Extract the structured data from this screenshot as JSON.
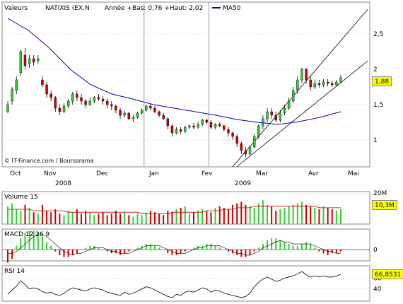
{
  "header": {
    "valeurs_label": "Valeurs",
    "symbol": "NATIXIS (EX.N",
    "range_text": "Année +Bas: 0,76 +Haut: 2,02",
    "ma_label": "MA50",
    "ma_color": "#0000cc"
  },
  "copyright": "© IT-Finance.com / Boursorama",
  "colors": {
    "up": "#33cc33",
    "down": "#cc0000",
    "ma": "#0000cc",
    "highlight": "#ffff00",
    "grid": "#d0d0d0"
  },
  "chart_data": [
    {
      "type": "line",
      "panel": "price",
      "note_type": "candlestick",
      "title": "",
      "months": [
        "Oct",
        "Nov",
        "Dec",
        "Jan",
        "Fev",
        "Mar",
        "Avr",
        "Mai"
      ],
      "years": [
        "2008",
        "2009"
      ],
      "yticks": [
        "2,5",
        "2",
        "1,5",
        "1"
      ],
      "ytick_values": [
        2.5,
        2.0,
        1.5,
        1.0
      ],
      "ylim": [
        0.62,
        2.9
      ],
      "last_value": "1,88",
      "series": [
        {
          "name": "MA50",
          "x": [
            0,
            10,
            20,
            30,
            40,
            50,
            60,
            70,
            80,
            90,
            100,
            110,
            120,
            130,
            140,
            150,
            160
          ],
          "values": [
            2.72,
            2.55,
            2.3,
            2.0,
            1.78,
            1.65,
            1.58,
            1.5,
            1.45,
            1.4,
            1.35,
            1.29,
            1.25,
            1.22,
            1.26,
            1.32,
            1.4
          ]
        }
      ],
      "trendlines": [
        {
          "x": [
            108,
            173
          ],
          "y": [
            0.62,
            2.85
          ]
        },
        {
          "x": [
            110,
            173
          ],
          "y": [
            0.62,
            2.12
          ]
        }
      ],
      "candles": [
        [
          0,
          1.4,
          1.5,
          1.38,
          1.55
        ],
        [
          1,
          1.55,
          1.72,
          1.5,
          1.75
        ],
        [
          2,
          1.7,
          1.85,
          1.65,
          1.9
        ],
        [
          3,
          1.95,
          2.25,
          1.9,
          2.28
        ],
        [
          4,
          2.2,
          2.05,
          2.0,
          2.3
        ],
        [
          5,
          2.08,
          2.15,
          2.02,
          2.2
        ],
        [
          6,
          2.15,
          2.1,
          2.05,
          2.2
        ],
        [
          7,
          2.12,
          2.15,
          2.08,
          2.2
        ],
        [
          8,
          1.85,
          1.78,
          1.75,
          1.9
        ],
        [
          9,
          1.78,
          1.65,
          1.6,
          1.82
        ],
        [
          10,
          1.65,
          1.6,
          1.55,
          1.7
        ],
        [
          11,
          1.6,
          1.45,
          1.4,
          1.62
        ],
        [
          12,
          1.45,
          1.4,
          1.35,
          1.5
        ],
        [
          13,
          1.4,
          1.48,
          1.38,
          1.52
        ],
        [
          14,
          1.48,
          1.55,
          1.45,
          1.58
        ],
        [
          15,
          1.55,
          1.65,
          1.5,
          1.68
        ],
        [
          16,
          1.65,
          1.6,
          1.55,
          1.7
        ],
        [
          17,
          1.6,
          1.55,
          1.5,
          1.65
        ],
        [
          18,
          1.55,
          1.5,
          1.45,
          1.58
        ],
        [
          19,
          1.5,
          1.55,
          1.48,
          1.6
        ],
        [
          20,
          1.55,
          1.6,
          1.52,
          1.62
        ],
        [
          21,
          1.6,
          1.58,
          1.55,
          1.65
        ],
        [
          22,
          1.58,
          1.55,
          1.5,
          1.62
        ],
        [
          23,
          1.55,
          1.5,
          1.45,
          1.58
        ],
        [
          24,
          1.5,
          1.48,
          1.42,
          1.55
        ],
        [
          25,
          1.48,
          1.42,
          1.38,
          1.5
        ],
        [
          26,
          1.42,
          1.35,
          1.3,
          1.45
        ],
        [
          27,
          1.35,
          1.38,
          1.32,
          1.42
        ],
        [
          28,
          1.38,
          1.3,
          1.28,
          1.4
        ],
        [
          29,
          1.3,
          1.32,
          1.25,
          1.36
        ],
        [
          30,
          1.32,
          1.38,
          1.3,
          1.4
        ],
        [
          31,
          1.38,
          1.42,
          1.35,
          1.45
        ],
        [
          32,
          1.42,
          1.48,
          1.4,
          1.5
        ],
        [
          33,
          1.48,
          1.45,
          1.42,
          1.52
        ],
        [
          34,
          1.45,
          1.4,
          1.38,
          1.48
        ],
        [
          35,
          1.4,
          1.35,
          1.32,
          1.42
        ],
        [
          36,
          1.35,
          1.3,
          1.28,
          1.38
        ],
        [
          37,
          1.3,
          1.2,
          1.15,
          1.32
        ],
        [
          38,
          1.2,
          1.1,
          1.05,
          1.22
        ],
        [
          39,
          1.1,
          1.15,
          1.08,
          1.18
        ],
        [
          40,
          1.15,
          1.12,
          1.08,
          1.18
        ],
        [
          41,
          1.12,
          1.18,
          1.1,
          1.2
        ],
        [
          42,
          1.18,
          1.2,
          1.15,
          1.22
        ],
        [
          43,
          1.2,
          1.18,
          1.15,
          1.24
        ],
        [
          44,
          1.18,
          1.22,
          1.16,
          1.26
        ],
        [
          45,
          1.22,
          1.28,
          1.2,
          1.3
        ],
        [
          46,
          1.28,
          1.25,
          1.22,
          1.3
        ],
        [
          47,
          1.25,
          1.18,
          1.15,
          1.28
        ],
        [
          48,
          1.18,
          1.22,
          1.15,
          1.24
        ],
        [
          49,
          1.22,
          1.2,
          1.18,
          1.25
        ],
        [
          50,
          1.2,
          1.15,
          1.12,
          1.22
        ],
        [
          51,
          1.15,
          1.1,
          1.05,
          1.18
        ],
        [
          52,
          1.1,
          1.05,
          1.0,
          1.12
        ],
        [
          53,
          1.05,
          0.95,
          0.9,
          1.08
        ],
        [
          54,
          0.95,
          0.85,
          0.8,
          0.98
        ],
        [
          55,
          0.85,
          0.8,
          0.76,
          0.9
        ],
        [
          56,
          0.8,
          0.9,
          0.78,
          0.92
        ],
        [
          57,
          0.9,
          1.05,
          0.88,
          1.08
        ],
        [
          58,
          1.05,
          1.2,
          1.02,
          1.22
        ],
        [
          59,
          1.2,
          1.3,
          1.15,
          1.35
        ],
        [
          60,
          1.3,
          1.4,
          1.25,
          1.45
        ],
        [
          61,
          1.4,
          1.35,
          1.3,
          1.45
        ],
        [
          62,
          1.35,
          1.28,
          1.25,
          1.4
        ],
        [
          63,
          1.28,
          1.38,
          1.25,
          1.42
        ],
        [
          64,
          1.38,
          1.45,
          1.35,
          1.5
        ],
        [
          65,
          1.45,
          1.55,
          1.42,
          1.6
        ],
        [
          66,
          1.55,
          1.7,
          1.52,
          1.75
        ],
        [
          67,
          1.7,
          1.85,
          1.65,
          1.9
        ],
        [
          68,
          1.85,
          2.0,
          1.8,
          2.02
        ],
        [
          69,
          2.0,
          1.85,
          1.8,
          2.02
        ],
        [
          70,
          1.85,
          1.75,
          1.7,
          1.9
        ],
        [
          71,
          1.75,
          1.8,
          1.72,
          1.85
        ],
        [
          72,
          1.8,
          1.78,
          1.74,
          1.85
        ],
        [
          73,
          1.78,
          1.82,
          1.75,
          1.86
        ],
        [
          74,
          1.82,
          1.8,
          1.76,
          1.86
        ],
        [
          75,
          1.8,
          1.78,
          1.75,
          1.84
        ],
        [
          76,
          1.78,
          1.82,
          1.76,
          1.85
        ],
        [
          77,
          1.82,
          1.88,
          1.8,
          1.92
        ]
      ]
    },
    {
      "type": "bar",
      "panel": "volume",
      "title": "Volume 15",
      "yticks": [
        "20M"
      ],
      "ytick_values": [
        20
      ],
      "ylim": [
        0,
        20
      ],
      "last_value": "10,3M",
      "values": [
        12,
        14,
        10,
        9,
        13,
        11,
        8,
        7,
        13,
        9,
        8,
        10,
        7,
        6,
        9,
        8,
        10,
        7,
        9,
        8,
        6,
        7,
        8,
        6,
        7,
        9,
        7,
        8,
        6,
        5,
        7,
        6,
        8,
        9,
        8,
        7,
        6,
        9,
        8,
        10,
        11,
        12,
        7,
        8,
        9,
        10,
        9,
        8,
        11,
        12,
        11,
        10,
        13,
        14,
        15,
        13,
        12,
        11,
        14,
        16,
        13,
        12,
        9,
        10,
        11,
        12,
        13,
        14,
        15,
        13,
        12,
        11,
        10,
        12,
        11,
        10,
        9,
        10.3
      ],
      "ma": [
        10,
        10,
        10,
        10,
        10,
        10,
        9,
        9,
        9,
        9,
        9,
        9,
        9,
        9,
        8,
        8,
        8,
        8,
        8,
        8,
        8,
        8,
        8,
        8,
        8,
        8,
        8,
        8,
        8,
        8,
        8,
        7,
        7,
        7,
        7,
        7,
        7,
        7,
        8,
        8,
        8,
        8,
        8,
        8,
        8,
        8,
        9,
        9,
        9,
        9,
        10,
        10,
        10,
        11,
        11,
        11,
        11,
        12,
        12,
        12,
        12,
        12,
        12,
        12,
        12,
        12,
        12,
        12,
        12,
        12,
        12,
        12,
        11,
        11,
        11,
        11,
        11,
        11
      ]
    },
    {
      "type": "bar",
      "panel": "macd",
      "title": "MACD 12 26 9",
      "yticks": [
        "0"
      ],
      "ytick_values": [
        0
      ],
      "values": [
        -0.07,
        -0.05,
        0.02,
        0.06,
        0.09,
        0.1,
        0.1,
        0.09,
        0.07,
        0.04,
        0.02,
        -0.01,
        -0.03,
        -0.04,
        -0.04,
        -0.03,
        -0.02,
        0.0,
        0.01,
        0.02,
        0.02,
        0.01,
        0.0,
        -0.01,
        -0.02,
        -0.02,
        -0.03,
        -0.02,
        -0.01,
        0.0,
        0.01,
        0.02,
        0.03,
        0.03,
        0.02,
        0.01,
        0.0,
        -0.02,
        -0.03,
        -0.03,
        -0.02,
        -0.01,
        0.0,
        0.01,
        0.02,
        0.02,
        0.03,
        0.03,
        0.02,
        0.01,
        0.0,
        -0.01,
        -0.02,
        -0.03,
        -0.04,
        -0.04,
        -0.03,
        -0.01,
        0.01,
        0.03,
        0.05,
        0.06,
        0.06,
        0.05,
        0.04,
        0.03,
        0.02,
        0.02,
        0.03,
        0.04,
        0.03,
        0.01,
        -0.01,
        -0.02,
        -0.03,
        -0.02,
        -0.02,
        -0.01
      ],
      "signal": [
        -0.02,
        -0.02,
        -0.01,
        0.01,
        0.03,
        0.05,
        0.07,
        0.08,
        0.08,
        0.07,
        0.05,
        0.03,
        0.01,
        -0.01,
        -0.02,
        -0.03,
        -0.02,
        -0.02,
        -0.01,
        0.0,
        0.01,
        0.01,
        0.01,
        0.0,
        -0.01,
        -0.01,
        -0.02,
        -0.02,
        -0.02,
        -0.01,
        0.0,
        0.01,
        0.02,
        0.02,
        0.02,
        0.02,
        0.01,
        0.0,
        -0.01,
        -0.02,
        -0.02,
        -0.02,
        -0.01,
        0.0,
        0.01,
        0.01,
        0.02,
        0.02,
        0.02,
        0.02,
        0.01,
        0.0,
        -0.01,
        -0.02,
        -0.02,
        -0.03,
        -0.03,
        -0.02,
        -0.01,
        0.01,
        0.02,
        0.03,
        0.04,
        0.05,
        0.04,
        0.04,
        0.03,
        0.03,
        0.03,
        0.03,
        0.03,
        0.02,
        0.01,
        0.0,
        -0.01,
        -0.01,
        -0.02,
        -0.02
      ]
    },
    {
      "type": "line",
      "panel": "rsi",
      "title": "RSI 14",
      "yticks": [
        "60",
        "40"
      ],
      "ytick_values": [
        60,
        40
      ],
      "ylim": [
        20,
        80
      ],
      "last_value": "66,8531",
      "values": [
        30,
        38,
        45,
        55,
        48,
        40,
        42,
        40,
        35,
        32,
        34,
        30,
        28,
        32,
        38,
        42,
        40,
        38,
        36,
        40,
        42,
        40,
        38,
        34,
        32,
        30,
        28,
        34,
        30,
        32,
        36,
        40,
        44,
        42,
        38,
        34,
        30,
        26,
        24,
        30,
        28,
        34,
        36,
        34,
        38,
        42,
        40,
        34,
        38,
        36,
        32,
        30,
        28,
        26,
        24,
        26,
        32,
        44,
        52,
        58,
        62,
        58,
        54,
        56,
        60,
        62,
        64,
        68,
        72,
        66,
        62,
        64,
        62,
        64,
        62,
        62,
        64,
        66.85
      ]
    }
  ]
}
